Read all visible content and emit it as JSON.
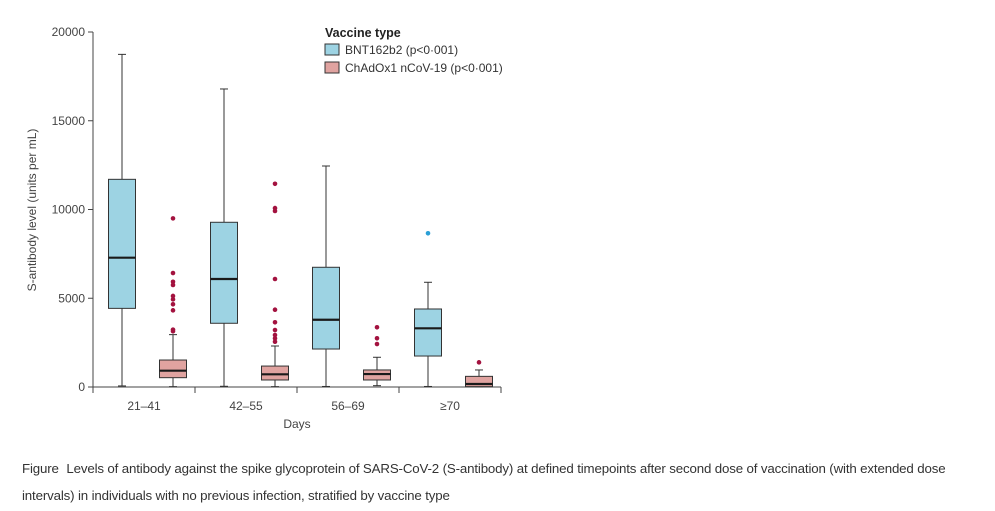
{
  "chart_data": {
    "type": "boxplot",
    "title": "",
    "xlabel": "Days",
    "ylabel": "S-antibody level (units per mL)",
    "ylim": [
      0,
      20000
    ],
    "yticks": [
      0,
      5000,
      10000,
      15000,
      20000
    ],
    "ytick_labels": [
      "0",
      "5000",
      "10000",
      "15000",
      "20000"
    ],
    "categories": [
      "21–41",
      "42–55",
      "56–69",
      "≥70"
    ],
    "grid": false,
    "legend": {
      "title": "Vaccine type",
      "placement": "top-right",
      "entries": [
        "BNT162b2 (p<0·001)",
        "ChAdOx1 nCoV-19 (p<0·001)"
      ]
    },
    "series": [
      {
        "name": "BNT162b2",
        "color": "#9dd3e3",
        "outlier_color": "#2a9fd6",
        "boxes": [
          {
            "whisker_low": 60,
            "q1": 4430,
            "median": 7285,
            "q3": 11700,
            "whisker_high": 18740,
            "outliers": []
          },
          {
            "whisker_low": 40,
            "q1": 3590,
            "median": 6085,
            "q3": 9280,
            "whisker_high": 16790,
            "outliers": []
          },
          {
            "whisker_low": 30,
            "q1": 2140,
            "median": 3790,
            "q3": 6745,
            "whisker_high": 12450,
            "outliers": []
          },
          {
            "whisker_low": 30,
            "q1": 1745,
            "median": 3305,
            "q3": 4395,
            "whisker_high": 5900,
            "outliers": [
              8660
            ]
          }
        ]
      },
      {
        "name": "ChAdOx1 nCoV-19",
        "color": "#e0a3a0",
        "outlier_color": "#a3123f",
        "boxes": [
          {
            "whisker_low": 20,
            "q1": 525,
            "median": 920,
            "q3": 1520,
            "whisker_high": 2950,
            "outliers": [
              9500,
              6420,
              5930,
              5750,
              5130,
              4940,
              4660,
              4320,
              3230,
              3140
            ]
          },
          {
            "whisker_low": 20,
            "q1": 395,
            "median": 715,
            "q3": 1180,
            "whisker_high": 2310,
            "outliers": [
              11450,
              10080,
              9915,
              6085,
              4355,
              3645,
              3210,
              2930,
              2740,
              2550
            ]
          },
          {
            "whisker_low": 75,
            "q1": 395,
            "median": 730,
            "q3": 960,
            "whisker_high": 1675,
            "outliers": [
              3365,
              2745,
              2420
            ]
          },
          {
            "whisker_low": 10,
            "q1": 20,
            "median": 170,
            "q3": 600,
            "whisker_high": 960,
            "outliers": [
              1390
            ]
          }
        ]
      }
    ]
  },
  "caption": {
    "lead": "Figure",
    "text": "Levels of antibody against the spike glycoprotein of SARS-CoV-2 (S-antibody) at defined timepoints after second dose of vaccination (with extended dose intervals) in individuals with no previous infection, stratified by vaccine type"
  }
}
